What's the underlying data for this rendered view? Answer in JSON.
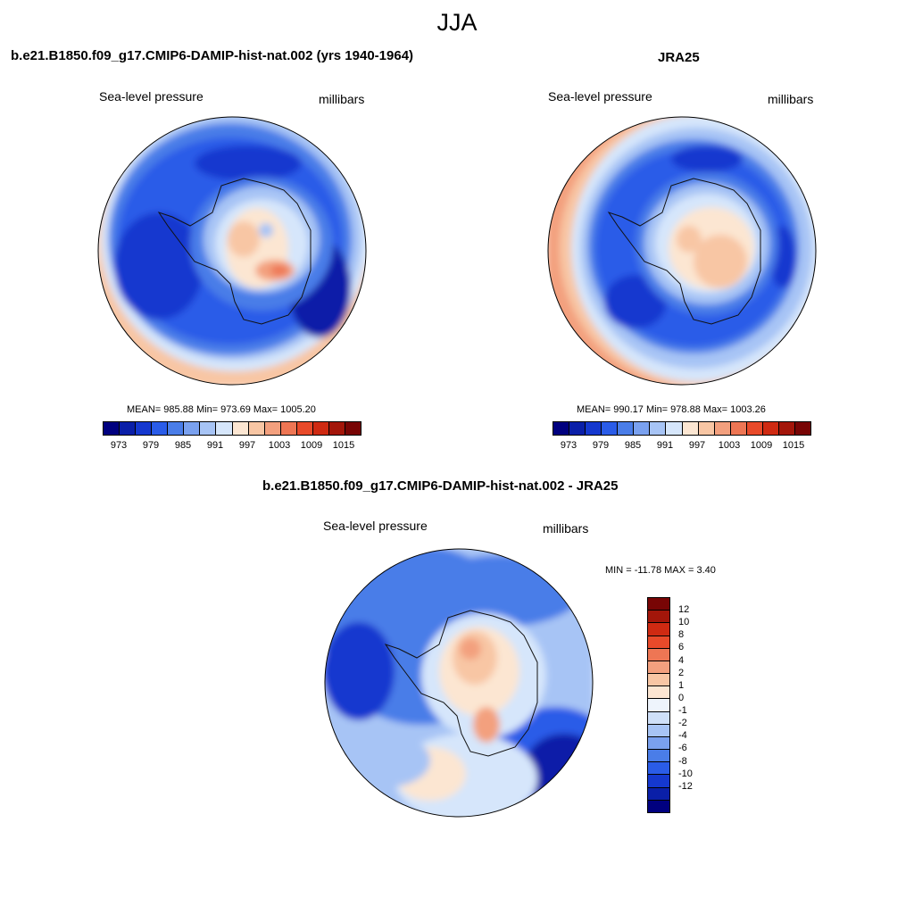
{
  "figure": {
    "title": "JJA"
  },
  "panels": [
    {
      "title": "b.e21.B1850.f09_g17.CMIP6-DAMIP-hist-nat.002 (yrs 1940-1964)",
      "variable": "Sea-level pressure",
      "units": "millibars",
      "stats": "MEAN= 985.88  Min= 973.69  Max= 1005.20",
      "map": "antarctic-polar-stereographic"
    },
    {
      "title": "JRA25",
      "variable": "Sea-level pressure",
      "units": "millibars",
      "stats": "MEAN= 990.17  Min= 978.88  Max= 1003.26",
      "map": "antarctic-polar-stereographic"
    },
    {
      "title": "b.e21.B1850.f09_g17.CMIP6-DAMIP-hist-nat.002 - JRA25",
      "variable": "Sea-level pressure",
      "units": "millibars",
      "stats": "MIN = -11.78 MAX =   3.40",
      "map": "antarctic-polar-stereographic"
    }
  ],
  "colorbar_abs": {
    "tick_labels": [
      "973",
      "979",
      "985",
      "991",
      "997",
      "1003",
      "1009",
      "1015"
    ],
    "colors": [
      "#00007f",
      "#0a1fa8",
      "#1538cf",
      "#2a5ce8",
      "#4a7de8",
      "#7aa1ef",
      "#a7c4f5",
      "#d6e6fb",
      "#fce6d2",
      "#f8c6a4",
      "#f3a07e",
      "#ee7654",
      "#e84a2a",
      "#cf2a12",
      "#a3160a",
      "#780505"
    ]
  },
  "colorbar_diff": {
    "tick_labels": [
      "12",
      "10",
      "8",
      "6",
      "4",
      "2",
      "1",
      "0",
      "-1",
      "-2",
      "-4",
      "-6",
      "-8",
      "-10",
      "-12"
    ],
    "colors": [
      "#780505",
      "#a3160a",
      "#cf2a12",
      "#e84a2a",
      "#ee7654",
      "#f3a07e",
      "#f8c6a4",
      "#fce6d2",
      "#eef4fc",
      "#cfe0f8",
      "#a7c4f5",
      "#7aa1ef",
      "#4a7de8",
      "#2a5ce8",
      "#1538cf",
      "#0a1fa8",
      "#00007f"
    ]
  },
  "colors": {
    "coast": "#111111",
    "land_warm": "#f3a07e",
    "land_light": "#d6e6fb"
  }
}
